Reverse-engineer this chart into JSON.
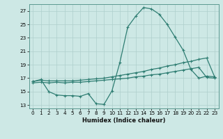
{
  "xlabel": "Humidex (Indice chaleur)",
  "bg_color": "#cde8e5",
  "line_color": "#2e7d72",
  "grid_color": "#aecfcc",
  "xlim": [
    -0.5,
    23.5
  ],
  "ylim": [
    12.5,
    28.0
  ],
  "yticks": [
    13,
    15,
    17,
    19,
    21,
    23,
    25,
    27
  ],
  "xticks": [
    0,
    1,
    2,
    3,
    4,
    5,
    6,
    7,
    8,
    9,
    10,
    11,
    12,
    13,
    14,
    15,
    16,
    17,
    18,
    19,
    20,
    21,
    22,
    23
  ],
  "line1_x": [
    0,
    1,
    2,
    3,
    4,
    5,
    6,
    7,
    8,
    9,
    10,
    11,
    12,
    13,
    14,
    15,
    16,
    17,
    18,
    19,
    20,
    21,
    22,
    23
  ],
  "line1_y": [
    16.5,
    16.7,
    16.6,
    16.6,
    16.6,
    16.6,
    16.7,
    16.8,
    16.9,
    17.0,
    17.2,
    17.4,
    17.6,
    17.8,
    18.0,
    18.3,
    18.5,
    18.8,
    19.0,
    19.3,
    19.5,
    19.8,
    20.0,
    17.2
  ],
  "line2_x": [
    0,
    1,
    2,
    3,
    4,
    5,
    6,
    7,
    8,
    9,
    10,
    11,
    12,
    13,
    14,
    15,
    16,
    17,
    18,
    19,
    20,
    21,
    22,
    23
  ],
  "line2_y": [
    16.3,
    16.4,
    16.3,
    16.4,
    16.3,
    16.4,
    16.4,
    16.5,
    16.6,
    16.7,
    16.8,
    16.9,
    17.0,
    17.2,
    17.3,
    17.5,
    17.6,
    17.8,
    18.0,
    18.2,
    18.4,
    18.6,
    17.1,
    17.0
  ],
  "line3_x": [
    0,
    1,
    2,
    3,
    4,
    5,
    6,
    7,
    8,
    9,
    10,
    11,
    12,
    13,
    14,
    15,
    16,
    17,
    18,
    19,
    20,
    21,
    22,
    23
  ],
  "line3_y": [
    16.5,
    16.8,
    15.0,
    14.5,
    14.4,
    14.4,
    14.3,
    14.7,
    13.2,
    13.1,
    15.1,
    19.3,
    24.6,
    26.2,
    27.5,
    27.3,
    26.5,
    25.0,
    23.1,
    21.2,
    18.3,
    17.0,
    17.3,
    17.2
  ],
  "marker": "+",
  "markersize": 3.5,
  "linewidth": 0.9,
  "tick_fontsize": 5.2,
  "xlabel_fontsize": 6.0
}
